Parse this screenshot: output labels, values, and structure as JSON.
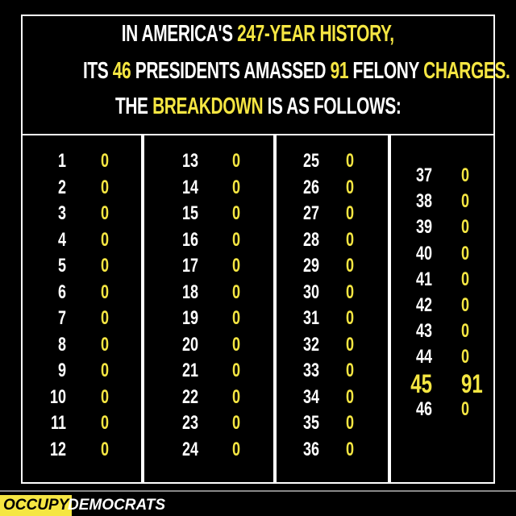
{
  "header": {
    "lines": [
      [
        {
          "text": "IN AMERICA'S ",
          "highlight": false
        },
        {
          "text": "247-YEAR HISTORY,",
          "highlight": true
        }
      ],
      [
        {
          "text": "ITS ",
          "highlight": false
        },
        {
          "text": "46",
          "highlight": true
        },
        {
          "text": " PRESIDENTS AMASSED ",
          "highlight": false
        },
        {
          "text": "91",
          "highlight": true
        },
        {
          "text": " FELONY ",
          "highlight": false
        },
        {
          "text": "CHARGES.",
          "highlight": true
        }
      ],
      [
        {
          "text": "THE ",
          "highlight": false
        },
        {
          "text": "BREAKDOWN",
          "highlight": true
        },
        {
          "text": " IS AS FOLLOWS:",
          "highlight": false
        }
      ]
    ]
  },
  "table": {
    "columns": [
      {
        "rows": [
          {
            "president": 1,
            "charges": 0
          },
          {
            "president": 2,
            "charges": 0
          },
          {
            "president": 3,
            "charges": 0
          },
          {
            "president": 4,
            "charges": 0
          },
          {
            "president": 5,
            "charges": 0
          },
          {
            "president": 6,
            "charges": 0
          },
          {
            "president": 7,
            "charges": 0
          },
          {
            "president": 8,
            "charges": 0
          },
          {
            "president": 9,
            "charges": 0
          },
          {
            "president": 10,
            "charges": 0
          },
          {
            "president": 11,
            "charges": 0
          },
          {
            "president": 12,
            "charges": 0
          }
        ]
      },
      {
        "rows": [
          {
            "president": 13,
            "charges": 0
          },
          {
            "president": 14,
            "charges": 0
          },
          {
            "president": 15,
            "charges": 0
          },
          {
            "president": 16,
            "charges": 0
          },
          {
            "president": 17,
            "charges": 0
          },
          {
            "president": 18,
            "charges": 0
          },
          {
            "president": 19,
            "charges": 0
          },
          {
            "president": 20,
            "charges": 0
          },
          {
            "president": 21,
            "charges": 0
          },
          {
            "president": 22,
            "charges": 0
          },
          {
            "president": 23,
            "charges": 0
          },
          {
            "president": 24,
            "charges": 0
          }
        ]
      },
      {
        "rows": [
          {
            "president": 25,
            "charges": 0
          },
          {
            "president": 26,
            "charges": 0
          },
          {
            "president": 27,
            "charges": 0
          },
          {
            "president": 28,
            "charges": 0
          },
          {
            "president": 29,
            "charges": 0
          },
          {
            "president": 30,
            "charges": 0
          },
          {
            "president": 31,
            "charges": 0
          },
          {
            "president": 32,
            "charges": 0
          },
          {
            "president": 33,
            "charges": 0
          },
          {
            "president": 34,
            "charges": 0
          },
          {
            "president": 35,
            "charges": 0
          },
          {
            "president": 36,
            "charges": 0
          }
        ]
      },
      {
        "rows": [
          {
            "president": 37,
            "charges": 0
          },
          {
            "president": 38,
            "charges": 0
          },
          {
            "president": 39,
            "charges": 0
          },
          {
            "president": 40,
            "charges": 0
          },
          {
            "president": 41,
            "charges": 0
          },
          {
            "president": 42,
            "charges": 0
          },
          {
            "president": 43,
            "charges": 0
          },
          {
            "president": 44,
            "charges": 0
          },
          {
            "president": 45,
            "charges": 91,
            "highlight": true
          },
          {
            "president": 46,
            "charges": 0
          }
        ]
      }
    ]
  },
  "footer": {
    "brand_first": "OCCUPY",
    "brand_second": "DEMOCRATS"
  }
}
